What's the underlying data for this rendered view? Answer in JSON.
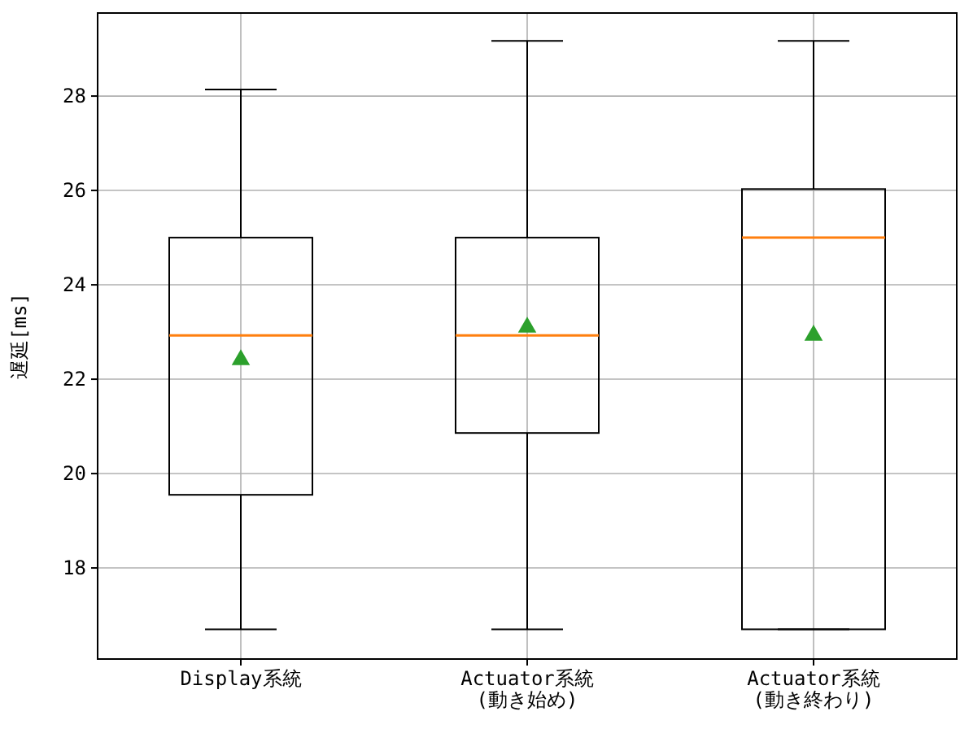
{
  "chart_data": {
    "type": "box",
    "ylabel": "遅延[ms]",
    "categories": [
      "Display系統",
      "Actuator系統\n(動き始め)",
      "Actuator系統\n(動き終わり)"
    ],
    "boxes": [
      {
        "low": 16.7,
        "q1": 19.55,
        "median": 22.93,
        "q3": 25.0,
        "high": 28.14,
        "mean": 22.41
      },
      {
        "low": 16.7,
        "q1": 20.86,
        "median": 22.93,
        "q3": 25.0,
        "high": 29.17,
        "mean": 23.1
      },
      {
        "low": 16.7,
        "q1": 16.7,
        "median": 25.0,
        "q3": 26.03,
        "high": 29.17,
        "mean": 22.93
      }
    ],
    "ylim": [
      16.07,
      29.76
    ],
    "yticks": [
      18,
      20,
      22,
      24,
      26,
      28
    ],
    "grid": true,
    "marker": "triangle"
  }
}
